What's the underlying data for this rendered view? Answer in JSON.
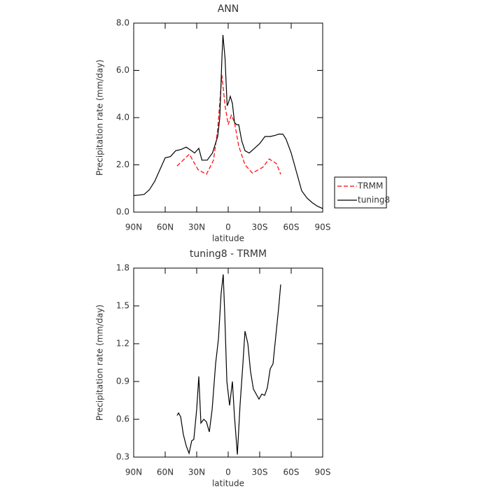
{
  "chart_data": [
    {
      "type": "line",
      "title": "ANN",
      "xlabel": "latitude",
      "ylabel": "Precipitation rate (mm/day)",
      "xlim": [
        90,
        -90
      ],
      "xticks": [
        {
          "value": 90,
          "label": "90N"
        },
        {
          "value": 60,
          "label": "60N"
        },
        {
          "value": 30,
          "label": "30N"
        },
        0,
        {
          "value": -30,
          "label": "30S"
        },
        {
          "value": -60,
          "label": "60S"
        },
        {
          "value": -90,
          "label": "90S"
        }
      ],
      "ylim": [
        0,
        8
      ],
      "yticks": [
        {
          "value": 0,
          "label": "0.0"
        },
        {
          "value": 2,
          "label": "2.0"
        },
        {
          "value": 4,
          "label": "4.0"
        },
        {
          "value": 6,
          "label": "6.0"
        },
        {
          "value": 8,
          "label": "8.0"
        }
      ],
      "legend": "right",
      "series": [
        {
          "name": "TRMM",
          "color": "#ff0000",
          "line_style": "dashed",
          "x": [
            48.7,
            37,
            28.7,
            20.7,
            14,
            10,
            6,
            3,
            0,
            -3,
            -6,
            -10,
            -16,
            -23,
            -33,
            -39,
            -46,
            -50
          ],
          "values": [
            1.95,
            2.45,
            1.8,
            1.6,
            2.2,
            3.5,
            5.8,
            4.5,
            3.7,
            4.1,
            3.8,
            2.8,
            2.0,
            1.65,
            1.9,
            2.25,
            2.05,
            1.6
          ]
        },
        {
          "name": "tuning8",
          "color": "#000000",
          "line_style": "solid",
          "x": [
            90,
            85,
            80,
            75,
            70,
            65,
            60,
            55,
            50,
            45,
            40,
            35,
            32,
            28,
            25,
            20,
            15,
            10,
            8,
            6,
            5,
            3,
            1,
            0,
            -2,
            -4,
            -6,
            -8,
            -10,
            -13,
            -16,
            -20,
            -25,
            -30,
            -35,
            -40,
            -45,
            -48,
            -52,
            -55,
            -60,
            -65,
            -70,
            -75,
            -80,
            -85,
            -90
          ],
          "values": [
            0.7,
            0.72,
            0.75,
            0.95,
            1.3,
            1.8,
            2.3,
            2.35,
            2.6,
            2.65,
            2.75,
            2.6,
            2.5,
            2.7,
            2.2,
            2.2,
            2.5,
            3.2,
            4.0,
            6.5,
            7.5,
            6.5,
            4.5,
            4.6,
            4.9,
            4.6,
            3.8,
            3.7,
            3.7,
            3.0,
            2.6,
            2.5,
            2.7,
            2.9,
            3.2,
            3.2,
            3.25,
            3.3,
            3.3,
            3.1,
            2.5,
            1.7,
            0.9,
            0.6,
            0.4,
            0.25,
            0.15
          ]
        }
      ]
    },
    {
      "type": "line",
      "title": "tuning8 - TRMM",
      "xlabel": "latitude",
      "ylabel": "Precipitation rate (mm/day)",
      "xlim": [
        90,
        -90
      ],
      "xticks": [
        {
          "value": 90,
          "label": "90N"
        },
        {
          "value": 60,
          "label": "60N"
        },
        {
          "value": 30,
          "label": "30N"
        },
        0,
        {
          "value": -30,
          "label": "30S"
        },
        {
          "value": -60,
          "label": "60S"
        },
        {
          "value": -90,
          "label": "90S"
        }
      ],
      "ylim": [
        0.3,
        1.8
      ],
      "yticks": [
        0.3,
        0.6,
        0.9,
        1.2,
        1.5,
        1.8
      ],
      "series": [
        {
          "color": "#000000",
          "line_style": "solid",
          "x": [
            48.7,
            47.3,
            45.3,
            42.7,
            40,
            37.3,
            34.7,
            32.7,
            30,
            28,
            26,
            23.3,
            20.7,
            18,
            15.3,
            12,
            9.3,
            6.7,
            4.7,
            3.3,
            1.3,
            -1.3,
            -4,
            -6,
            -8.7,
            -11.3,
            -14,
            -16,
            -18.7,
            -21.3,
            -24,
            -26.7,
            -29.3,
            -32,
            -34.7,
            -37.3,
            -40,
            -42.7,
            -45.3,
            -48,
            -50
          ],
          "values": [
            0.63,
            0.65,
            0.62,
            0.48,
            0.39,
            0.33,
            0.43,
            0.44,
            0.68,
            0.94,
            0.57,
            0.6,
            0.58,
            0.5,
            0.68,
            1.04,
            1.24,
            1.6,
            1.75,
            1.43,
            0.9,
            0.71,
            0.9,
            0.62,
            0.32,
            0.71,
            1.04,
            1.3,
            1.2,
            0.98,
            0.84,
            0.8,
            0.76,
            0.8,
            0.79,
            0.85,
            1.0,
            1.04,
            1.26,
            1.48,
            1.67
          ]
        }
      ]
    }
  ]
}
